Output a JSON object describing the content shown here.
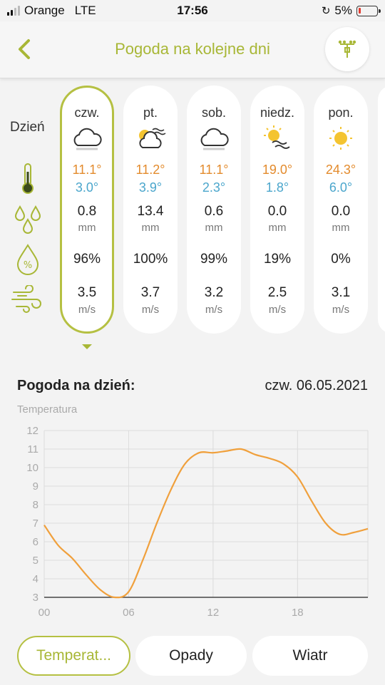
{
  "status_bar": {
    "carrier": "Orange",
    "network": "LTE",
    "time": "17:56",
    "battery": "5%"
  },
  "header": {
    "title": "Pogoda na kolejne dni",
    "back_icon": "chevron-left-icon",
    "station_icon": "weather-station-icon"
  },
  "row_labels": {
    "day": "Dzień"
  },
  "days": [
    {
      "name": "czw.",
      "icon": "cloudy-icon",
      "tmax": "11.1°",
      "tmin": "3.0°",
      "precip": "0.8",
      "precip_unit": "mm",
      "humidity": "96%",
      "wind": "3.5",
      "wind_unit": "m/s",
      "selected": true
    },
    {
      "name": "pt.",
      "icon": "sun-cloud-wind-icon",
      "tmax": "11.2°",
      "tmin": "3.9°",
      "precip": "13.4",
      "precip_unit": "mm",
      "humidity": "100%",
      "wind": "3.7",
      "wind_unit": "m/s"
    },
    {
      "name": "sob.",
      "icon": "cloudy-icon",
      "tmax": "11.1°",
      "tmin": "2.3°",
      "precip": "0.6",
      "precip_unit": "mm",
      "humidity": "99%",
      "wind": "3.2",
      "wind_unit": "m/s"
    },
    {
      "name": "niedz.",
      "icon": "sun-wind-icon",
      "tmax": "19.0°",
      "tmin": "1.8°",
      "precip": "0.0",
      "precip_unit": "mm",
      "humidity": "19%",
      "wind": "2.5",
      "wind_unit": "m/s"
    },
    {
      "name": "pon.",
      "icon": "sun-icon",
      "tmax": "24.3°",
      "tmin": "6.0°",
      "precip": "0.0",
      "precip_unit": "mm",
      "humidity": "0%",
      "wind": "3.1",
      "wind_unit": "m/s"
    }
  ],
  "details": {
    "label": "Pogoda na dzień:",
    "date": "czw. 06.05.2021"
  },
  "chart_data": {
    "type": "line",
    "title": "Temperatura",
    "xlabel": "",
    "ylabel": "",
    "x_tick_labels": [
      "00",
      "06",
      "12",
      "18"
    ],
    "x_ticks": [
      0,
      6,
      12,
      18
    ],
    "xlim": [
      0,
      23
    ],
    "y_ticks": [
      3,
      4,
      5,
      6,
      7,
      8,
      9,
      10,
      11,
      12
    ],
    "ylim": [
      3,
      12
    ],
    "grid": true,
    "series": [
      {
        "color": "#f0a03c",
        "x": [
          0,
          1,
          2,
          3,
          4,
          5,
          6,
          7,
          8,
          9,
          10,
          11,
          12,
          13,
          14,
          15,
          16,
          17,
          18,
          19,
          20,
          21,
          22,
          23
        ],
        "y": [
          6.9,
          5.8,
          5.1,
          4.2,
          3.4,
          3.0,
          3.3,
          5.0,
          7.0,
          8.8,
          10.2,
          10.8,
          10.8,
          10.9,
          11.0,
          10.7,
          10.5,
          10.2,
          9.5,
          8.2,
          7.0,
          6.4,
          6.5,
          6.7
        ]
      }
    ]
  },
  "tabs": [
    {
      "label": "Temperat...",
      "active": true
    },
    {
      "label": "Opady"
    },
    {
      "label": "Wiatr"
    }
  ],
  "colors": {
    "accent": "#a8b736",
    "max_temp": "#e38b2d",
    "min_temp": "#4ba6cc",
    "chart_line": "#f0a03c"
  }
}
